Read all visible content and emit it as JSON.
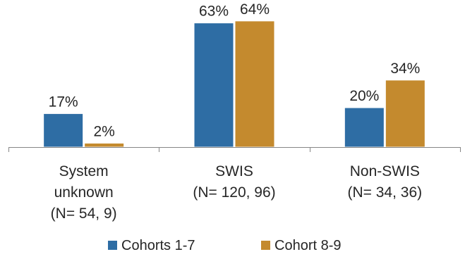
{
  "chart_data": {
    "type": "bar",
    "title": "",
    "xlabel": "",
    "ylabel": "",
    "ylim": [
      0,
      70
    ],
    "grid": false,
    "legend_position": "bottom",
    "categories": [
      [
        "System",
        "unknown",
        "(N= 54, 9)"
      ],
      [
        "SWIS",
        "(N= 120, 96)"
      ],
      [
        "Non-SWIS",
        "(N= 34, 36)"
      ]
    ],
    "series": [
      {
        "name": "Cohorts 1-7",
        "color": "#2E6DA4",
        "values": [
          17,
          63,
          20
        ],
        "labels": [
          "17%",
          "63%",
          "20%"
        ]
      },
      {
        "name": "Cohort 8-9",
        "color": "#C48A2E",
        "values": [
          2,
          64,
          34
        ],
        "labels": [
          "2%",
          "64%",
          "34%"
        ]
      }
    ]
  }
}
